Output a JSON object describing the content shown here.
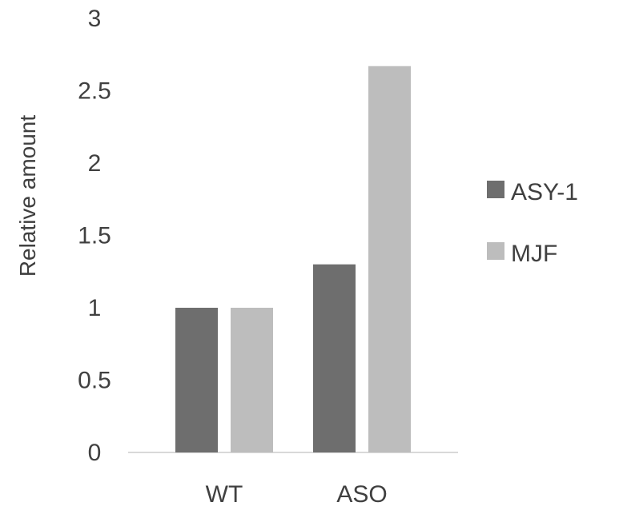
{
  "chart_data": {
    "type": "bar",
    "categories": [
      "WT",
      "ASO"
    ],
    "series": [
      {
        "name": "ASY-1",
        "values": [
          1.0,
          1.3
        ],
        "color": "#6e6e6e"
      },
      {
        "name": "MJF",
        "values": [
          1.0,
          2.67
        ],
        "color": "#bdbdbd"
      }
    ],
    "ylabel": "Relative amount",
    "ylim": [
      0,
      3
    ],
    "yticks": [
      0,
      0.5,
      1,
      1.5,
      2,
      2.5,
      3
    ],
    "ytick_labels": [
      "0",
      "0.5",
      "1",
      "1.5",
      "2",
      "2.5",
      "3"
    ],
    "grid": false,
    "legend_position": "right"
  }
}
